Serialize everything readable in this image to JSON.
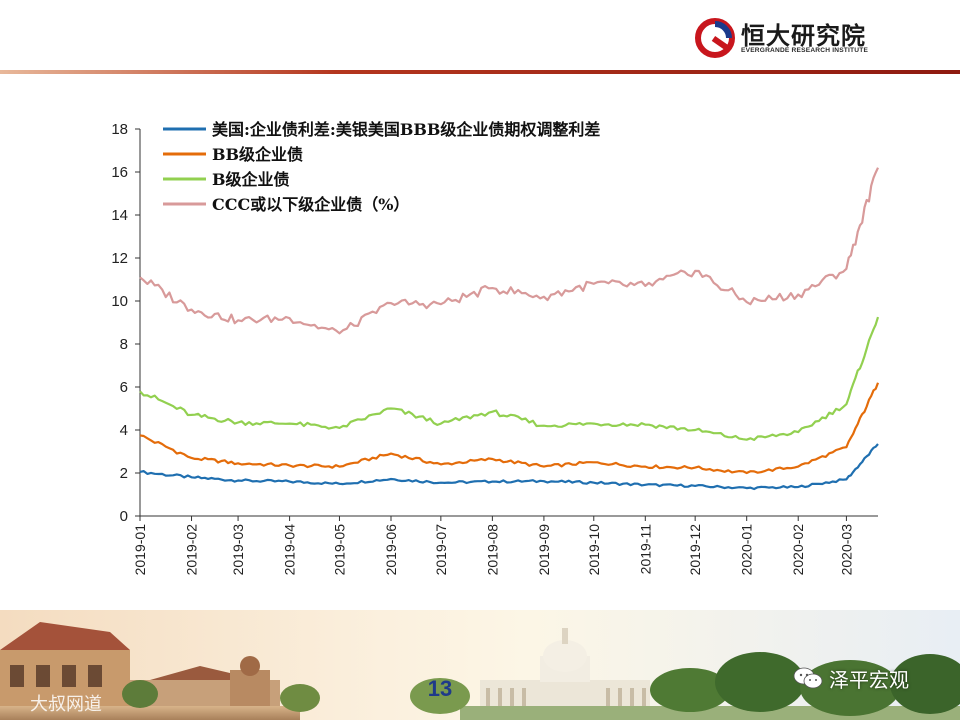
{
  "header": {
    "logo_name": "恒大研究院",
    "logo_sub": "EVERGRANDE RESEARCH INSTITUTE"
  },
  "chart_data": {
    "type": "line",
    "x": [
      "2019-01",
      "2019-02",
      "2019-03",
      "2019-04",
      "2019-05",
      "2019-06",
      "2019-07",
      "2019-08",
      "2019-09",
      "2019-10",
      "2019-11",
      "2019-12",
      "2020-01",
      "2020-02",
      "2020-03",
      "2020-03-20"
    ],
    "x_tick_labels": [
      "2019-01",
      "2019-02",
      "2019-03",
      "2019-04",
      "2019-05",
      "2019-06",
      "2019-07",
      "2019-08",
      "2019-09",
      "2019-10",
      "2019-11",
      "2019-12",
      "2020-01",
      "2020-02",
      "2020-03"
    ],
    "ylim": [
      0,
      18
    ],
    "y_ticks": [
      0,
      2,
      4,
      6,
      8,
      10,
      12,
      14,
      16,
      18
    ],
    "grid": false,
    "legend_position": "top-left",
    "series": [
      {
        "name": "美国:企业债利差:美银美国BBB级企业债期权调整利差",
        "color": "#1f6fb0",
        "values": [
          2.05,
          1.8,
          1.65,
          1.6,
          1.5,
          1.72,
          1.55,
          1.6,
          1.62,
          1.55,
          1.45,
          1.4,
          1.3,
          1.35,
          1.7,
          3.35
        ]
      },
      {
        "name": "BB级企业债",
        "color": "#e46c0a",
        "values": [
          3.75,
          2.7,
          2.45,
          2.35,
          2.3,
          2.9,
          2.4,
          2.65,
          2.3,
          2.5,
          2.3,
          2.25,
          2.0,
          2.3,
          3.2,
          6.2
        ]
      },
      {
        "name": "B级企业债",
        "color": "#92d050",
        "values": [
          5.8,
          4.7,
          4.35,
          4.3,
          4.1,
          5.0,
          4.3,
          4.85,
          4.2,
          4.3,
          4.25,
          4.0,
          3.55,
          3.9,
          5.2,
          9.25
        ]
      },
      {
        "name": "CCC或以下级企业债（%）",
        "color": "#d89a9a",
        "values": [
          11.1,
          9.6,
          9.1,
          9.2,
          8.5,
          9.9,
          9.85,
          10.6,
          10.2,
          10.8,
          10.7,
          11.4,
          9.95,
          10.3,
          11.5,
          16.2
        ]
      }
    ]
  },
  "footer": {
    "page_number": "13",
    "watermark_left": "大叔网道",
    "watermark_right": "泽平宏观"
  }
}
